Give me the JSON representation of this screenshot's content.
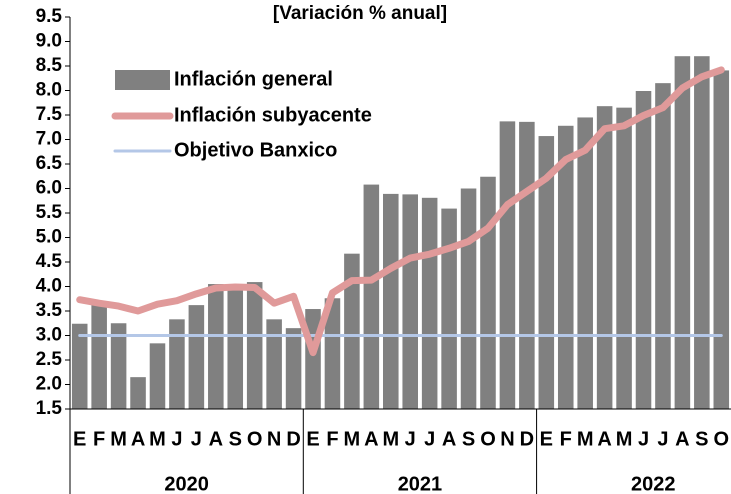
{
  "chart_data": {
    "type": "bar",
    "title": "[Variación % anual]",
    "categories": [
      "E",
      "F",
      "M",
      "A",
      "M",
      "J",
      "J",
      "A",
      "S",
      "O",
      "N",
      "D",
      "E",
      "F",
      "M",
      "A",
      "M",
      "J",
      "J",
      "A",
      "S",
      "O",
      "N",
      "D",
      "E",
      "F",
      "M",
      "A",
      "M",
      "J",
      "J",
      "A",
      "S",
      "O"
    ],
    "years": [
      "2020",
      "2021",
      "2022"
    ],
    "series": [
      {
        "name": "Inflación general",
        "type": "bar",
        "color": "#808080",
        "values": [
          3.24,
          3.7,
          3.25,
          2.15,
          2.84,
          3.33,
          3.62,
          4.05,
          4.01,
          4.09,
          3.33,
          3.15,
          3.54,
          3.76,
          4.67,
          6.08,
          5.89,
          5.88,
          5.81,
          5.59,
          6.0,
          6.24,
          7.37,
          7.36,
          7.07,
          7.28,
          7.45,
          7.68,
          7.65,
          7.99,
          8.15,
          8.7,
          8.7,
          8.41
        ]
      },
      {
        "name": "Inflación subyacente",
        "type": "line",
        "color": "#e09a9a",
        "values": [
          3.73,
          3.66,
          3.6,
          3.5,
          3.64,
          3.71,
          3.85,
          3.97,
          3.99,
          3.98,
          3.66,
          3.8,
          2.65,
          3.87,
          4.12,
          4.13,
          4.37,
          4.58,
          4.66,
          4.78,
          4.92,
          5.19,
          5.67,
          5.94,
          6.21,
          6.59,
          6.78,
          7.22,
          7.28,
          7.49,
          7.65,
          8.05,
          8.28,
          8.42
        ]
      },
      {
        "name": "Objetivo Banxico",
        "type": "line",
        "color": "#b4c7e7",
        "values": [
          3,
          3,
          3,
          3,
          3,
          3,
          3,
          3,
          3,
          3,
          3,
          3,
          3,
          3,
          3,
          3,
          3,
          3,
          3,
          3,
          3,
          3,
          3,
          3,
          3,
          3,
          3,
          3,
          3,
          3,
          3,
          3,
          3,
          3
        ]
      }
    ],
    "ylim": [
      1.5,
      9.5
    ],
    "yticks": [
      1.5,
      {
        "value": 2,
        "label": "2.0"
      },
      2.5,
      {
        "value": 3,
        "label": "3.0"
      },
      3.5,
      {
        "value": 4,
        "label": "4.0"
      },
      4.5,
      {
        "value": 5,
        "label": "5.0"
      },
      5.5,
      {
        "value": 6,
        "label": "6.0"
      },
      6.5,
      {
        "value": 7,
        "label": "7.0"
      },
      7.5,
      {
        "value": 8,
        "label": "8.0"
      },
      8.5,
      {
        "value": 9,
        "label": "9.0"
      },
      9.5
    ],
    "grid": false
  }
}
